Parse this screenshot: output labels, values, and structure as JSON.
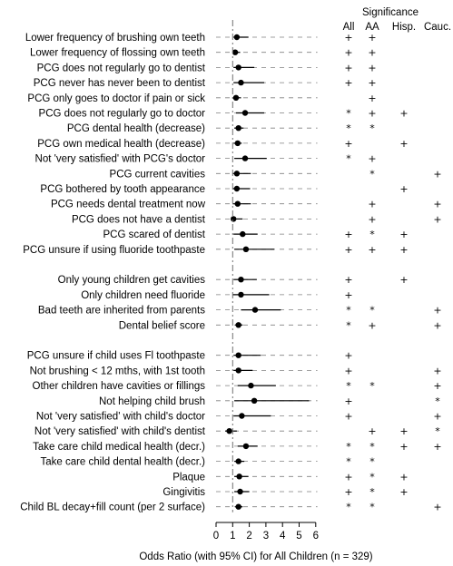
{
  "chart_data": {
    "type": "forest",
    "xlabel": "Odds Ratio (with 95% CI) for All Children (n = 329)",
    "xticks": [
      0,
      1,
      2,
      3,
      4,
      5,
      6
    ],
    "xlim": [
      0,
      6
    ],
    "reference_line": 1,
    "significance_header": "Significance",
    "columns": [
      "All",
      "AA",
      "Hisp.",
      "Cauc."
    ],
    "rows": [
      {
        "label": "Lower frequency of brushing own teeth",
        "or": 1.25,
        "lo": 1.05,
        "hi": 1.95,
        "sig": [
          "+",
          "+",
          "",
          ""
        ]
      },
      {
        "label": "Lower frequency of flossing own teeth",
        "or": 1.15,
        "lo": 1.02,
        "hi": 1.45,
        "sig": [
          "+",
          "+",
          "",
          ""
        ]
      },
      {
        "label": "PCG does not regularly go to dentist",
        "or": 1.35,
        "lo": 1.05,
        "hi": 2.3,
        "sig": [
          "+",
          "+",
          "",
          ""
        ]
      },
      {
        "label": "PCG never has never been to dentist",
        "or": 1.5,
        "lo": 1.05,
        "hi": 2.9,
        "sig": [
          "+",
          "+",
          "",
          ""
        ]
      },
      {
        "label": "PCG only goes to doctor if pain or sick",
        "or": 1.2,
        "lo": 1.0,
        "hi": 1.5,
        "sig": [
          "",
          "+",
          "",
          ""
        ]
      },
      {
        "label": "PCG does not regularly go to doctor",
        "or": 1.75,
        "lo": 1.2,
        "hi": 2.9,
        "sig": [
          "*",
          "+",
          "+",
          ""
        ]
      },
      {
        "label": "PCG dental health (decrease)",
        "or": 1.35,
        "lo": 1.1,
        "hi": 1.65,
        "sig": [
          "*",
          "*",
          "",
          ""
        ]
      },
      {
        "label": "PCG own medical health (decrease)",
        "or": 1.3,
        "lo": 1.05,
        "hi": 1.55,
        "sig": [
          "+",
          "",
          "+",
          ""
        ]
      },
      {
        "label": "Not 'very satisfied' with PCG's doctor",
        "or": 1.75,
        "lo": 1.1,
        "hi": 3.05,
        "sig": [
          "*",
          "+",
          "",
          ""
        ]
      },
      {
        "label": "PCG current cavities",
        "or": 1.25,
        "lo": 1.0,
        "hi": 2.1,
        "sig": [
          "",
          "*",
          "",
          "+"
        ]
      },
      {
        "label": "PCG bothered by tooth appearance",
        "or": 1.25,
        "lo": 1.0,
        "hi": 2.05,
        "sig": [
          "",
          "",
          "+",
          ""
        ]
      },
      {
        "label": "PCG needs dental treatment now",
        "or": 1.3,
        "lo": 1.0,
        "hi": 2.1,
        "sig": [
          "",
          "+",
          "",
          "+"
        ]
      },
      {
        "label": "PCG does not have a dentist",
        "or": 1.05,
        "lo": 0.9,
        "hi": 1.6,
        "sig": [
          "",
          "+",
          "",
          "+"
        ]
      },
      {
        "label": "PCG scared of dentist",
        "or": 1.6,
        "lo": 1.05,
        "hi": 2.5,
        "sig": [
          "+",
          "*",
          "+",
          ""
        ]
      },
      {
        "label": "PCG unsure if using fluoride toothpaste",
        "or": 1.8,
        "lo": 1.1,
        "hi": 3.5,
        "sig": [
          "+",
          "+",
          "+",
          ""
        ]
      },
      {
        "gap": true
      },
      {
        "label": "Only young children get cavities",
        "or": 1.5,
        "lo": 1.05,
        "hi": 2.45,
        "sig": [
          "+",
          "",
          "+",
          ""
        ]
      },
      {
        "label": "Only children need fluoride",
        "or": 1.5,
        "lo": 1.0,
        "hi": 3.2,
        "sig": [
          "+",
          "",
          "",
          ""
        ]
      },
      {
        "label": "Bad teeth are inherited from parents",
        "or": 2.35,
        "lo": 1.5,
        "hi": 3.9,
        "sig": [
          "*",
          "*",
          "",
          "+"
        ]
      },
      {
        "label": "Dental belief score",
        "or": 1.35,
        "lo": 1.15,
        "hi": 1.6,
        "sig": [
          "*",
          "+",
          "",
          "+"
        ]
      },
      {
        "gap": true
      },
      {
        "label": "PCG unsure if child uses Fl toothpaste",
        "or": 1.35,
        "lo": 1.05,
        "hi": 2.7,
        "sig": [
          "+",
          "",
          "",
          ""
        ]
      },
      {
        "label": "Not brushing < 12 mths, with 1st tooth",
        "or": 1.35,
        "lo": 1.05,
        "hi": 2.2,
        "sig": [
          "+",
          "",
          "",
          "+"
        ]
      },
      {
        "label": "Other children have cavities or fillings",
        "or": 2.1,
        "lo": 1.3,
        "hi": 3.6,
        "sig": [
          "*",
          "*",
          "",
          "+"
        ]
      },
      {
        "label": "Not helping child brush",
        "or": 2.3,
        "lo": 1.1,
        "hi": 5.6,
        "sig": [
          "+",
          "",
          "",
          "*"
        ]
      },
      {
        "label": "Not 'very satisfied' with child's doctor",
        "or": 1.55,
        "lo": 1.05,
        "hi": 3.3,
        "sig": [
          "+",
          "",
          "",
          "+"
        ]
      },
      {
        "label": "Not 'very satisfied' with child's dentist",
        "or": 0.8,
        "lo": 0.55,
        "hi": 1.25,
        "sig": [
          "",
          "+",
          "+",
          "*"
        ]
      },
      {
        "label": "Take care child medical health (decr.)",
        "or": 1.8,
        "lo": 1.3,
        "hi": 2.5,
        "sig": [
          "*",
          "*",
          "+",
          "+"
        ]
      },
      {
        "label": "Take care child dental health (decr.)",
        "or": 1.35,
        "lo": 1.1,
        "hi": 1.7,
        "sig": [
          "*",
          "*",
          "",
          ""
        ]
      },
      {
        "label": "Plaque",
        "or": 1.4,
        "lo": 1.1,
        "hi": 1.95,
        "sig": [
          "+",
          "*",
          "+",
          ""
        ]
      },
      {
        "label": "Gingivitis",
        "or": 1.45,
        "lo": 1.1,
        "hi": 2.0,
        "sig": [
          "+",
          "*",
          "+",
          ""
        ]
      },
      {
        "label": "Child BL decay+fill count (per 2 surface)",
        "or": 1.35,
        "lo": 1.15,
        "hi": 1.6,
        "sig": [
          "*",
          "*",
          "",
          "+"
        ]
      }
    ]
  }
}
